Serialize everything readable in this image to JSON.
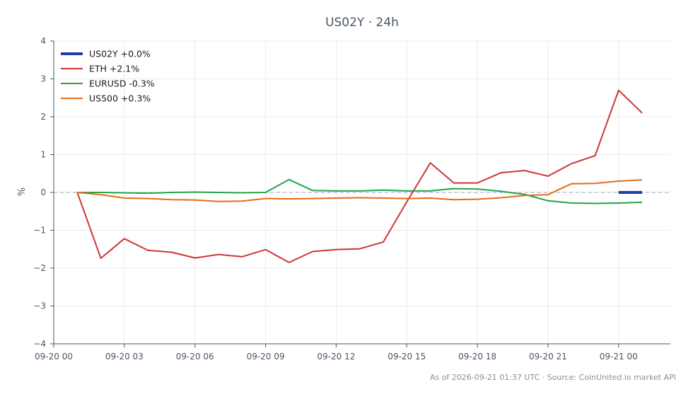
{
  "chart_data": {
    "type": "line",
    "title": "US02Y · 24h",
    "xlabel": "",
    "ylabel": "%",
    "ylim": [
      -4,
      4
    ],
    "yticks": [
      "−4",
      "−3",
      "−2",
      "−1",
      "0",
      "1",
      "2",
      "3",
      "4"
    ],
    "xlim": [
      "2026-09-20 00:00",
      "2026-09-21 02:12"
    ],
    "xticks": [
      "09-20 00",
      "09-20 03",
      "09-20 06",
      "09-20 09",
      "09-20 12",
      "09-20 15",
      "09-20 18",
      "09-20 21",
      "09-21 00"
    ],
    "x": [
      "2026-09-20 01:00",
      "2026-09-20 02:00",
      "2026-09-20 03:00",
      "2026-09-20 04:00",
      "2026-09-20 05:00",
      "2026-09-20 06:00",
      "2026-09-20 07:00",
      "2026-09-20 08:00",
      "2026-09-20 09:00",
      "2026-09-20 10:00",
      "2026-09-20 11:00",
      "2026-09-20 12:00",
      "2026-09-20 13:00",
      "2026-09-20 14:00",
      "2026-09-20 15:00",
      "2026-09-20 16:00",
      "2026-09-20 17:00",
      "2026-09-20 18:00",
      "2026-09-20 19:00",
      "2026-09-20 20:00",
      "2026-09-20 21:00",
      "2026-09-20 22:00",
      "2026-09-20 23:00",
      "2026-09-21 00:00",
      "2026-09-21 01:00"
    ],
    "grid": true,
    "zero_line": true,
    "legend_position": "top-left",
    "series": [
      {
        "name": "US02Y +0.0%",
        "color": "#1f3fa8",
        "x": [
          "2026-09-21 00:00",
          "2026-09-21 01:00"
        ],
        "values": [
          0.0,
          0.0
        ],
        "thick": true
      },
      {
        "name": "ETH +2.1%",
        "color": "#d13438",
        "values": [
          0.0,
          -1.74,
          -1.22,
          -1.53,
          -1.58,
          -1.73,
          -1.64,
          -1.7,
          -1.51,
          -1.85,
          -1.56,
          -1.51,
          -1.49,
          -1.31,
          -0.25,
          0.78,
          0.25,
          0.25,
          0.52,
          0.58,
          0.43,
          0.76,
          0.97,
          2.7,
          2.1
        ]
      },
      {
        "name": "EURUSD -0.3%",
        "color": "#22a34a",
        "values": [
          0.0,
          0.0,
          -0.01,
          -0.02,
          0.0,
          0.01,
          0.0,
          -0.01,
          0.0,
          0.34,
          0.05,
          0.04,
          0.04,
          0.06,
          0.04,
          0.04,
          0.1,
          0.09,
          0.03,
          -0.05,
          -0.22,
          -0.28,
          -0.29,
          -0.28,
          -0.26
        ]
      },
      {
        "name": "US500 +0.3%",
        "color": "#e36b1c",
        "values": [
          0.0,
          -0.06,
          -0.15,
          -0.16,
          -0.19,
          -0.2,
          -0.24,
          -0.23,
          -0.16,
          -0.17,
          -0.16,
          -0.15,
          -0.14,
          -0.15,
          -0.16,
          -0.15,
          -0.19,
          -0.18,
          -0.14,
          -0.08,
          -0.06,
          0.23,
          0.24,
          0.3,
          0.33
        ]
      }
    ],
    "footer": "As of 2026-09-21 01:37 UTC · Source: CoinUnited.io market API"
  }
}
